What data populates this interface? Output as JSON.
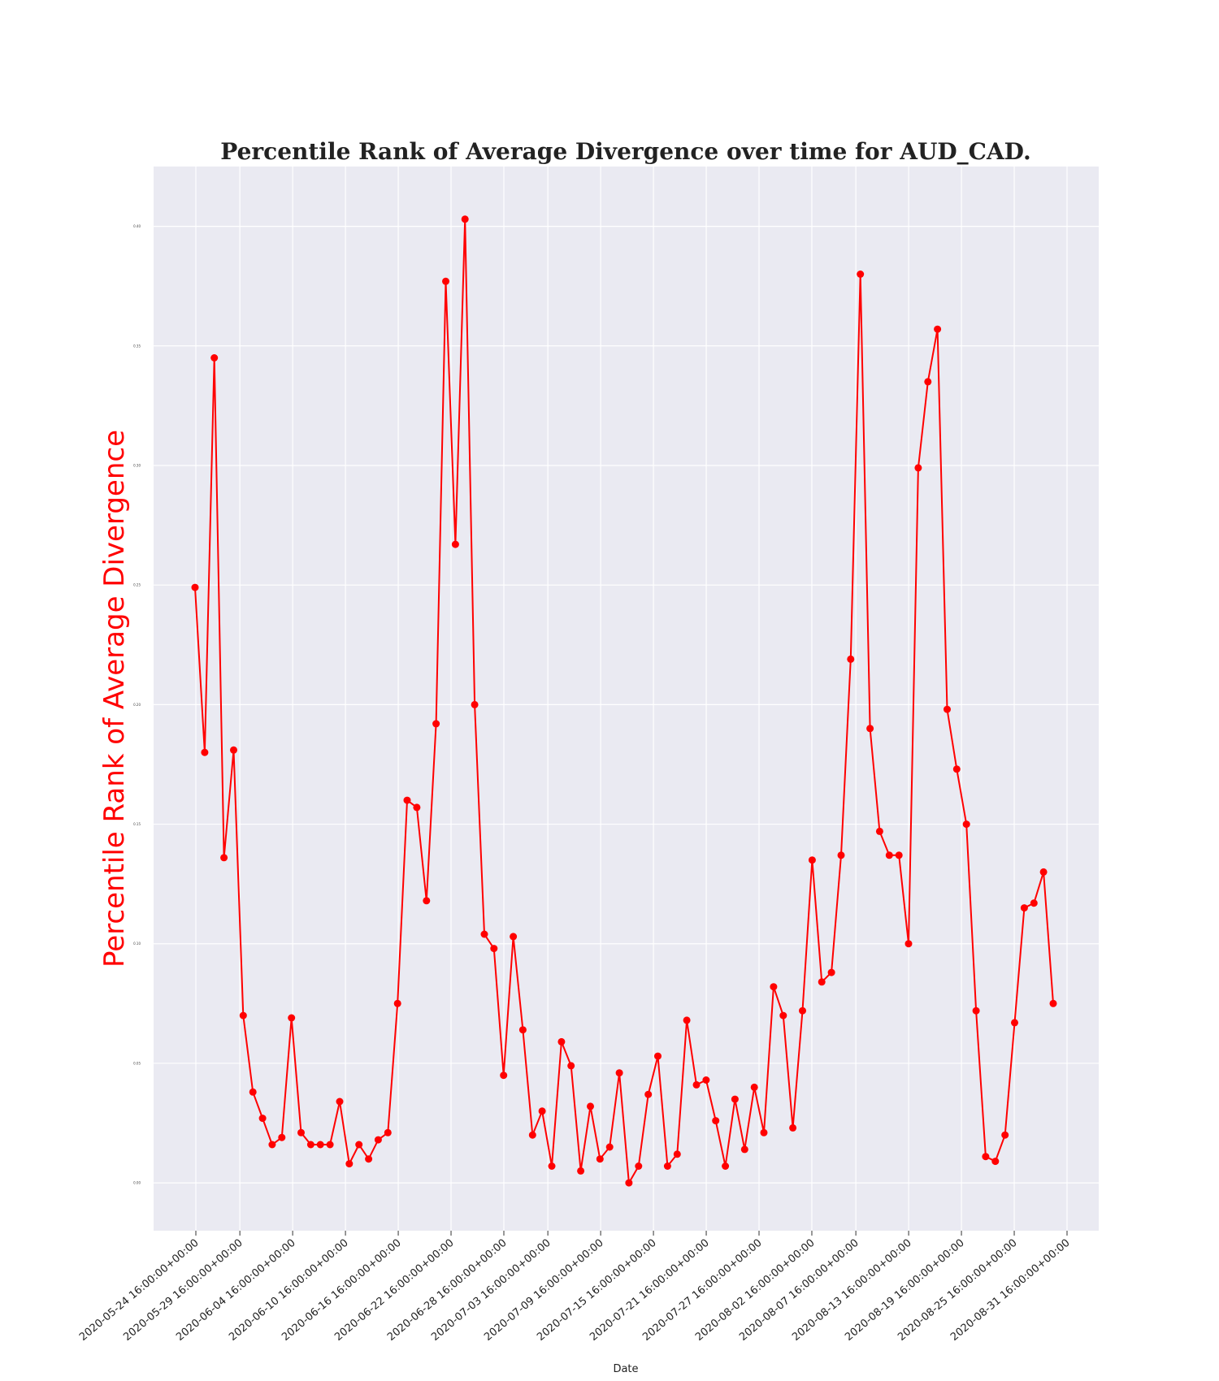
{
  "chart_data": {
    "type": "line",
    "title": "Percentile Rank of Average Divergence over time for AUD_CAD.",
    "xlabel": "Date",
    "ylabel": "Percentile Rank of Average Divergence",
    "x_start": "2020-05-24 16:00:00+00:00",
    "x_ticks": [
      "2020-05-24 16:00:00+00:00",
      "2020-05-29 16:00:00+00:00",
      "2020-06-04 16:00:00+00:00",
      "2020-06-10 16:00:00+00:00",
      "2020-06-16 16:00:00+00:00",
      "2020-06-22 16:00:00+00:00",
      "2020-06-28 16:00:00+00:00",
      "2020-07-03 16:00:00+00:00",
      "2020-07-09 16:00:00+00:00",
      "2020-07-15 16:00:00+00:00",
      "2020-07-21 16:00:00+00:00",
      "2020-07-27 16:00:00+00:00",
      "2020-08-02 16:00:00+00:00",
      "2020-08-07 16:00:00+00:00",
      "2020-08-13 16:00:00+00:00",
      "2020-08-19 16:00:00+00:00",
      "2020-08-25 16:00:00+00:00",
      "2020-08-31 16:00:00+00:00"
    ],
    "y_ticks": [
      "0.00",
      "0.05",
      "0.10",
      "0.15",
      "0.20",
      "0.25",
      "0.30",
      "0.35",
      "0.40"
    ],
    "ylim": [
      -0.02,
      0.425
    ],
    "grid": true,
    "series": [
      {
        "color": "#ff0000",
        "values": [
          0.249,
          0.18,
          0.345,
          0.136,
          0.181,
          0.07,
          0.038,
          0.027,
          0.016,
          0.019,
          0.069,
          0.021,
          0.016,
          0.016,
          0.016,
          0.034,
          0.008,
          0.016,
          0.01,
          0.018,
          0.021,
          0.075,
          0.16,
          0.157,
          0.118,
          0.192,
          0.377,
          0.267,
          0.403,
          0.2,
          0.104,
          0.098,
          0.045,
          0.103,
          0.064,
          0.02,
          0.03,
          0.007,
          0.059,
          0.049,
          0.005,
          0.032,
          0.01,
          0.015,
          0.046,
          0.0,
          0.007,
          0.037,
          0.053,
          0.007,
          0.012,
          0.068,
          0.041,
          0.043,
          0.026,
          0.007,
          0.035,
          0.014,
          0.04,
          0.021,
          0.082,
          0.07,
          0.023,
          0.072,
          0.135,
          0.084,
          0.088,
          0.137,
          0.219,
          0.38,
          0.19,
          0.147,
          0.137,
          0.137,
          0.1,
          0.299,
          0.335,
          0.357,
          0.198,
          0.173,
          0.15,
          0.072,
          0.011,
          0.009,
          0.02,
          0.067,
          0.115,
          0.117,
          0.13,
          0.075
        ]
      }
    ]
  }
}
